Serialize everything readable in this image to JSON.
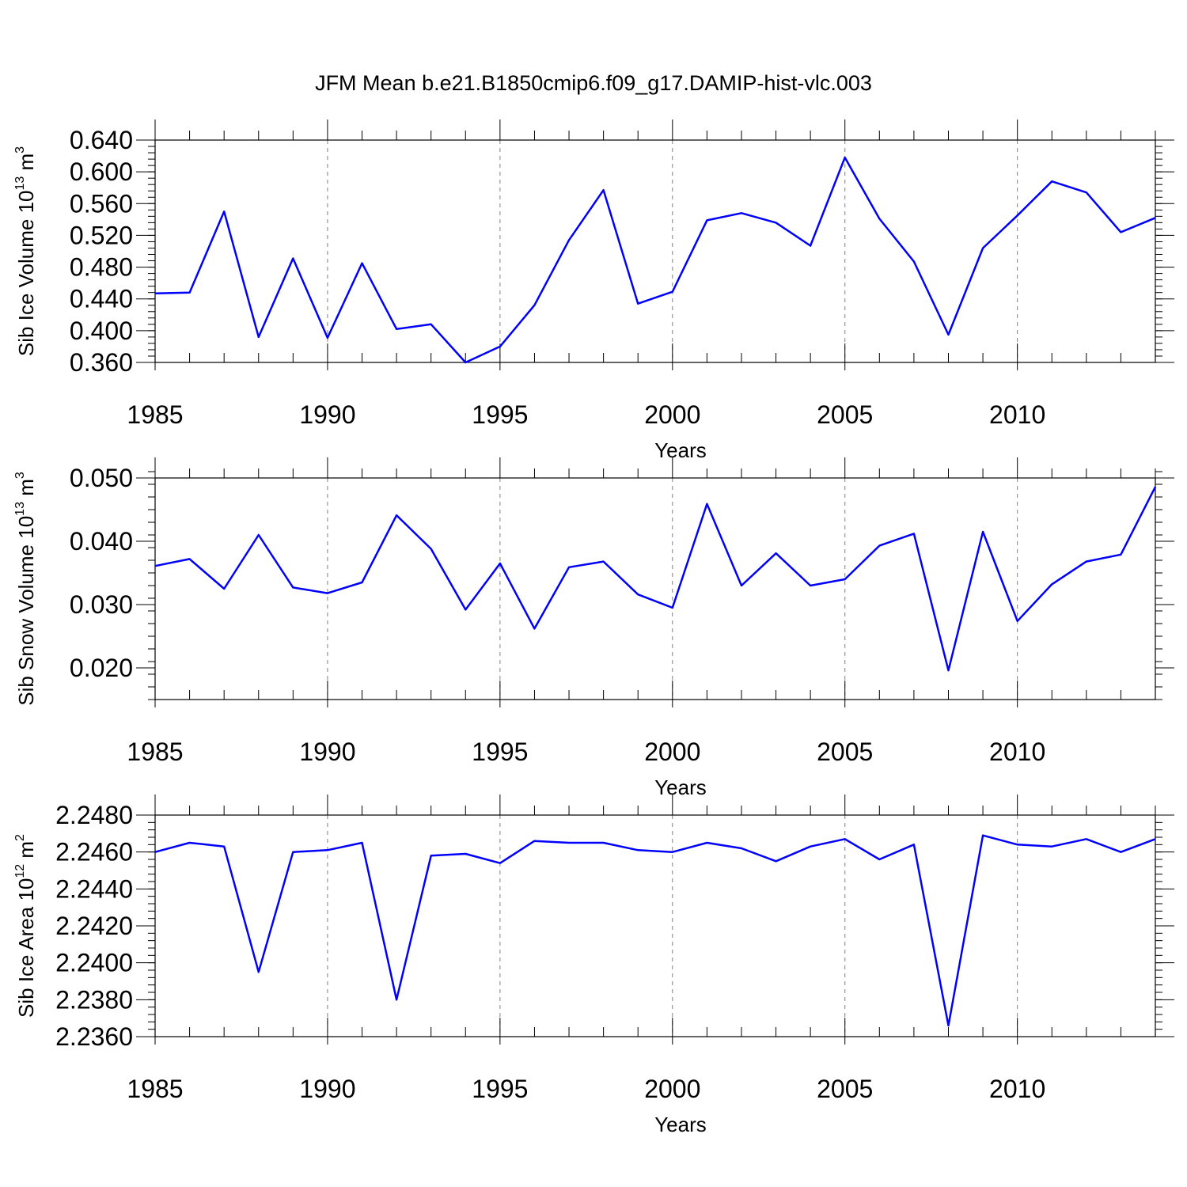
{
  "figure": {
    "title": "JFM Mean b.e21.B1850cmip6.f09_g17.DAMIP-hist-vlc.003"
  },
  "chart_data": [
    {
      "type": "line",
      "title": "JFM Mean b.e21.B1850cmip6.f09_g17.DAMIP-hist-vlc.003",
      "xlabel": "Years",
      "ylabel": "Sib Ice Volume 10",
      "ylabel_exp": "13",
      "ylabel_unit": " m",
      "ylabel_unit_exp": "3",
      "xlim": [
        1985,
        2014
      ],
      "ylim": [
        0.36,
        0.64
      ],
      "x_ticks": [
        1985,
        1990,
        1995,
        2000,
        2005,
        2010
      ],
      "y_ticks": [
        0.36,
        0.4,
        0.44,
        0.48,
        0.52,
        0.56,
        0.6,
        0.64
      ],
      "y_tick_labels": [
        "0.360",
        "0.400",
        "0.440",
        "0.480",
        "0.520",
        "0.560",
        "0.600",
        "0.640"
      ],
      "y_minor_step": 0.008,
      "grid": "vertical dashed at major x ticks",
      "line_color": "#0000ff",
      "series": [
        {
          "name": "Sib Ice Volume",
          "x": [
            1985,
            1986,
            1987,
            1988,
            1989,
            1990,
            1991,
            1992,
            1993,
            1994,
            1995,
            1996,
            1997,
            1998,
            1999,
            2000,
            2001,
            2002,
            2003,
            2004,
            2005,
            2006,
            2007,
            2008,
            2009,
            2010,
            2011,
            2012,
            2013,
            2014
          ],
          "values": [
            0.447,
            0.448,
            0.55,
            0.392,
            0.491,
            0.391,
            0.485,
            0.402,
            0.408,
            0.36,
            0.38,
            0.432,
            0.514,
            0.577,
            0.434,
            0.449,
            0.539,
            0.548,
            0.536,
            0.507,
            0.618,
            0.541,
            0.487,
            0.395,
            0.504,
            0.545,
            0.588,
            0.574,
            0.524,
            0.542
          ]
        }
      ]
    },
    {
      "type": "line",
      "xlabel": "Years",
      "ylabel": "Sib Snow Volume 10",
      "ylabel_exp": "13",
      "ylabel_unit": " m",
      "ylabel_unit_exp": "3",
      "xlim": [
        1985,
        2014
      ],
      "ylim": [
        0.015,
        0.05
      ],
      "x_ticks": [
        1985,
        1990,
        1995,
        2000,
        2005,
        2010
      ],
      "y_ticks": [
        0.02,
        0.03,
        0.04,
        0.05
      ],
      "y_tick_labels": [
        "0.020",
        "0.030",
        "0.040",
        "0.050"
      ],
      "y_minor_step": 0.002,
      "grid": "vertical dashed at major x ticks",
      "line_color": "#0000ff",
      "series": [
        {
          "name": "Sib Snow Volume",
          "x": [
            1985,
            1986,
            1987,
            1988,
            1989,
            1990,
            1991,
            1992,
            1993,
            1994,
            1995,
            1996,
            1997,
            1998,
            1999,
            2000,
            2001,
            2002,
            2003,
            2004,
            2005,
            2006,
            2007,
            2008,
            2009,
            2010,
            2011,
            2012,
            2013,
            2014
          ],
          "values": [
            0.0361,
            0.0372,
            0.0325,
            0.041,
            0.0327,
            0.0318,
            0.0335,
            0.0441,
            0.0388,
            0.0292,
            0.0365,
            0.0262,
            0.0359,
            0.0368,
            0.0316,
            0.0295,
            0.0459,
            0.033,
            0.0381,
            0.033,
            0.034,
            0.0393,
            0.0412,
            0.0196,
            0.0415,
            0.0274,
            0.0332,
            0.0368,
            0.0379,
            0.0486
          ]
        }
      ]
    },
    {
      "type": "line",
      "xlabel": "Years",
      "ylabel": "Sib Ice Area 10",
      "ylabel_exp": "12",
      "ylabel_unit": " m",
      "ylabel_unit_exp": "2",
      "xlim": [
        1985,
        2014
      ],
      "ylim": [
        2.236,
        2.248
      ],
      "x_ticks": [
        1985,
        1990,
        1995,
        2000,
        2005,
        2010
      ],
      "y_ticks": [
        2.236,
        2.238,
        2.24,
        2.242,
        2.244,
        2.246,
        2.248
      ],
      "y_tick_labels": [
        "2.2360",
        "2.2380",
        "2.2400",
        "2.2420",
        "2.2440",
        "2.2460",
        "2.2480"
      ],
      "y_minor_step": 0.0004,
      "grid": "vertical dashed at major x ticks",
      "line_color": "#0000ff",
      "series": [
        {
          "name": "Sib Ice Area",
          "x": [
            1985,
            1986,
            1987,
            1988,
            1989,
            1990,
            1991,
            1992,
            1993,
            1994,
            1995,
            1996,
            1997,
            1998,
            1999,
            2000,
            2001,
            2002,
            2003,
            2004,
            2005,
            2006,
            2007,
            2008,
            2009,
            2010,
            2011,
            2012,
            2013,
            2014
          ],
          "values": [
            2.246,
            2.2465,
            2.2463,
            2.2395,
            2.246,
            2.2461,
            2.2465,
            2.238,
            2.2458,
            2.2459,
            2.2454,
            2.2466,
            2.2465,
            2.2465,
            2.2461,
            2.246,
            2.2465,
            2.2462,
            2.2455,
            2.2463,
            2.2467,
            2.2456,
            2.2464,
            2.2366,
            2.2469,
            2.2464,
            2.2463,
            2.2467,
            2.246,
            2.2467
          ]
        }
      ]
    }
  ]
}
